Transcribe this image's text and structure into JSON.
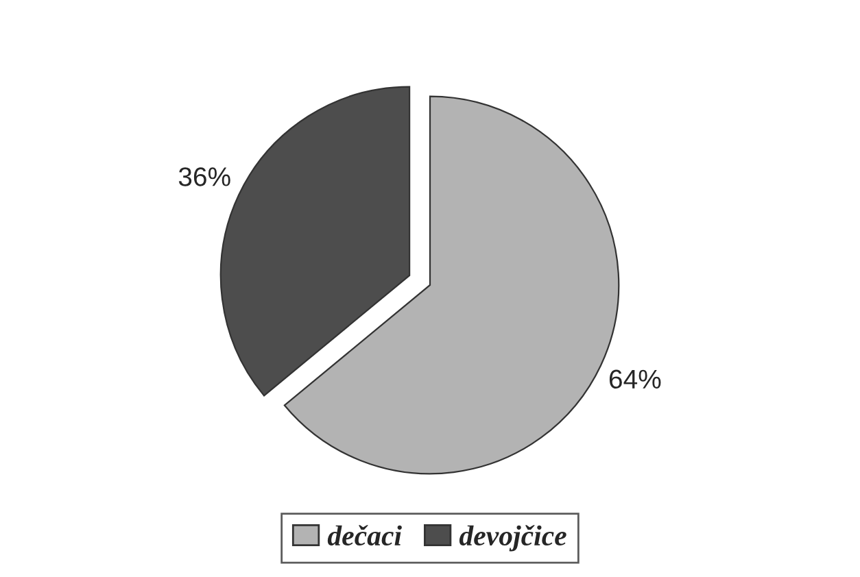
{
  "chart_data": {
    "type": "pie",
    "categories": [
      "dečaci",
      "devojčice"
    ],
    "values": [
      64,
      36
    ],
    "colors": [
      "#b3b3b3",
      "#4d4d4d"
    ],
    "value_labels": [
      "64%",
      "36%"
    ],
    "legend": "bottom"
  }
}
